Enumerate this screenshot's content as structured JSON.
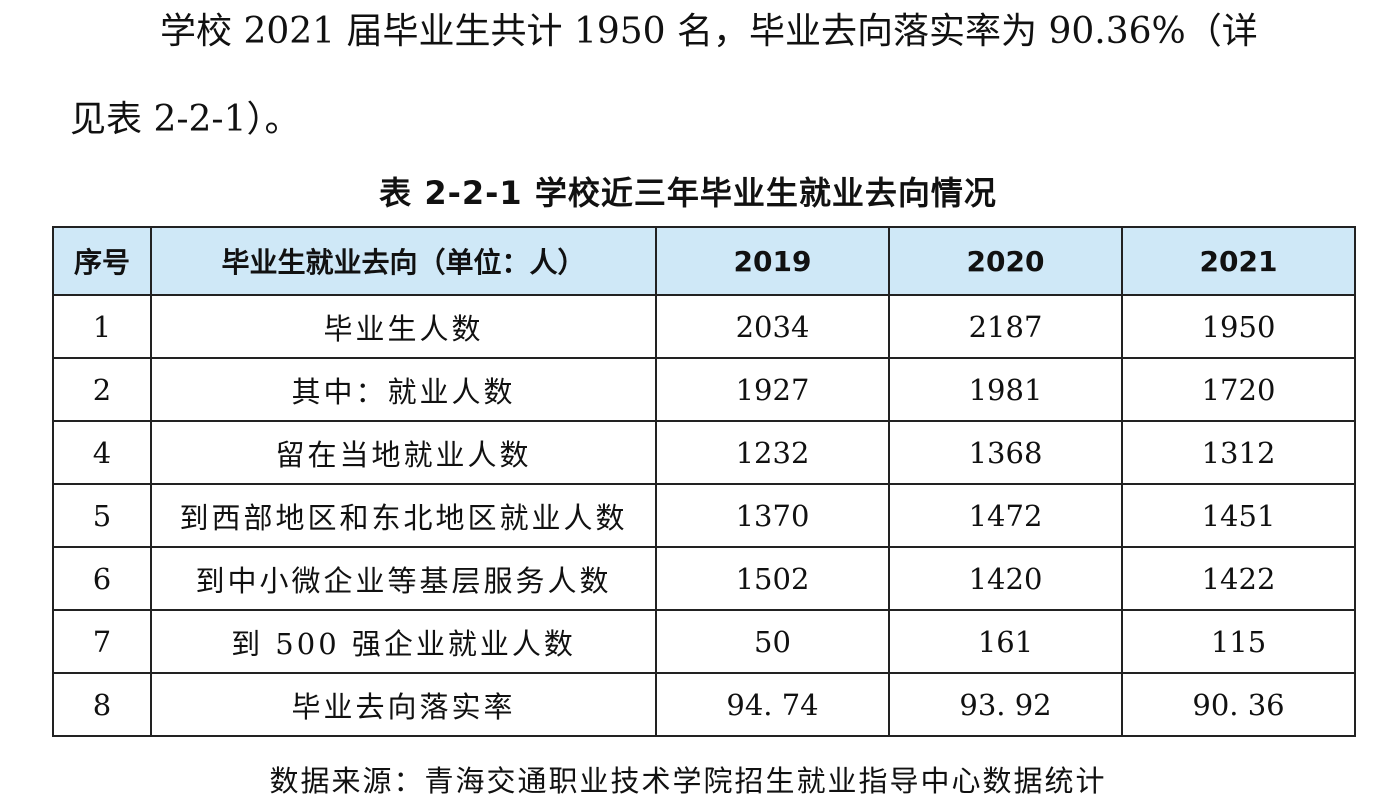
{
  "paragraph": {
    "line1": "学校 2021 届毕业生共计 1950 名，毕业去向落实率为 90.36%（详",
    "line2": "见表 2-2-1）。"
  },
  "table": {
    "caption": "表 2-2-1   学校近三年毕业生就业去向情况",
    "headers": [
      "序号",
      "毕业生就业去向（单位：人）",
      "2019",
      "2020",
      "2021"
    ],
    "rows": [
      {
        "no": "1",
        "label": "毕业生人数",
        "v2019": "2034",
        "v2020": "2187",
        "v2021": "1950"
      },
      {
        "no": "2",
        "label": "其中：就业人数",
        "v2019": "1927",
        "v2020": "1981",
        "v2021": "1720"
      },
      {
        "no": "4",
        "label": "留在当地就业人数",
        "v2019": "1232",
        "v2020": "1368",
        "v2021": "1312"
      },
      {
        "no": "5",
        "label": "到西部地区和东北地区就业人数",
        "v2019": "1370",
        "v2020": "1472",
        "v2021": "1451"
      },
      {
        "no": "6",
        "label": "到中小微企业等基层服务人数",
        "v2019": "1502",
        "v2020": "1420",
        "v2021": "1422"
      },
      {
        "no": "7",
        "label": "到 500 强企业就业人数",
        "v2019": "50",
        "v2020": "161",
        "v2021": "115"
      },
      {
        "no": "8",
        "label": "毕业去向落实率",
        "v2019": "94. 74",
        "v2020": "93. 92",
        "v2021": "90. 36"
      }
    ],
    "header_bg": "#cfe8f7"
  },
  "source": "数据来源：青海交通职业技术学院招生就业指导中心数据统计"
}
